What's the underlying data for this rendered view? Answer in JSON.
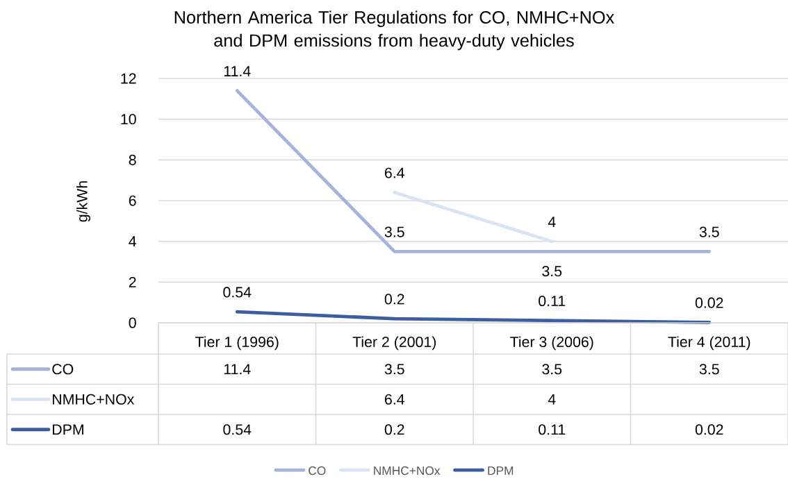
{
  "chart_data": {
    "type": "line",
    "title": "Northern America Tier Regulations for CO, NMHC+NOx and DPM emissions from heavy-duty vehicles",
    "ylabel": "g/kWh",
    "categories": [
      "Tier 1 (1996)",
      "Tier 2 (2001)",
      "Tier 3 (2006)",
      "Tier 4 (2011)"
    ],
    "series": [
      {
        "name": "CO",
        "color": "#a5b4da",
        "values": [
          11.4,
          3.5,
          3.5,
          3.5
        ],
        "value_labels": [
          "11.4",
          "3.5",
          "3.5",
          "3.5"
        ]
      },
      {
        "name": "NMHC+NOx",
        "color": "#dae3f3",
        "values": [
          null,
          6.4,
          4,
          null
        ],
        "value_labels": [
          null,
          "6.4",
          "4",
          null
        ]
      },
      {
        "name": "DPM",
        "color": "#3b5ea1",
        "values": [
          0.54,
          0.2,
          0.11,
          0.02
        ],
        "value_labels": [
          "0.54",
          "0.2",
          "0.11",
          "0.02"
        ]
      }
    ],
    "ylim": [
      0,
      12
    ],
    "yticks": [
      0,
      2,
      4,
      6,
      8,
      10,
      12
    ],
    "grid": "y",
    "legend": "bottom",
    "annotations": [
      "11.4",
      "3.5",
      "3.5",
      "3.5",
      "6.4",
      "4",
      "0.54",
      "0.2",
      "0.11",
      "0.02"
    ],
    "marker": "none",
    "line_style": "solid"
  }
}
